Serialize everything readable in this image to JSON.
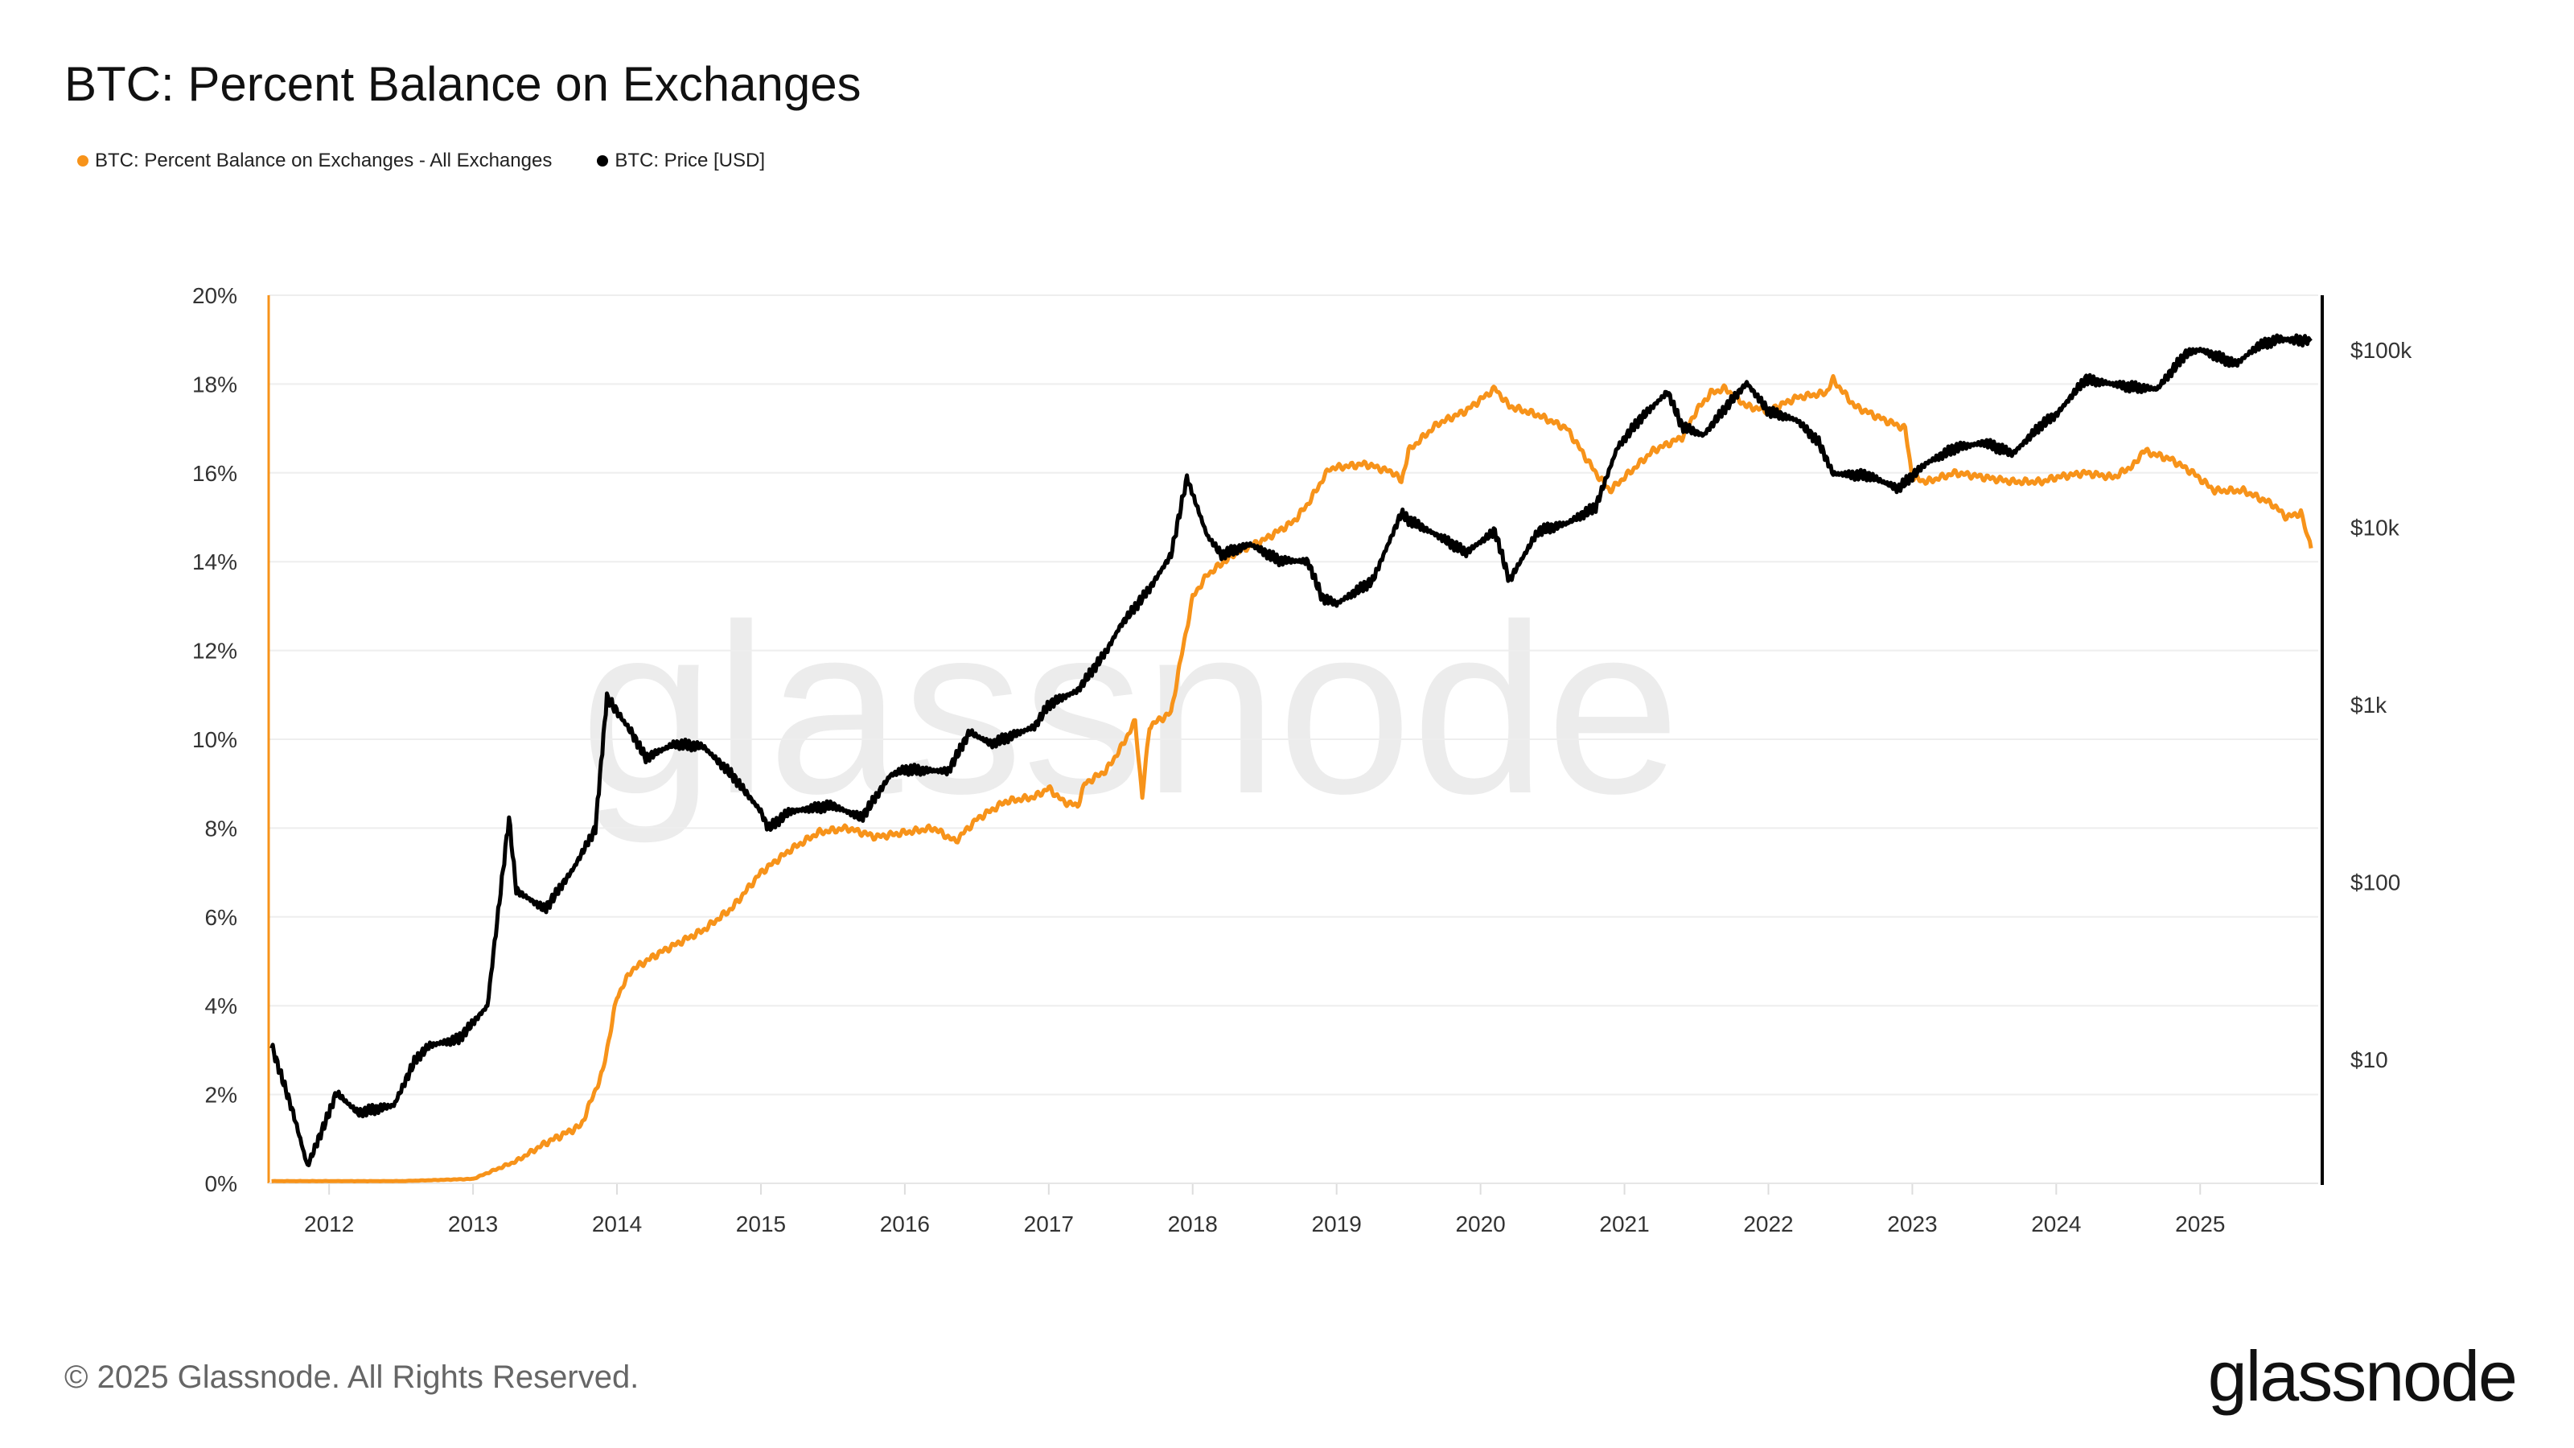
{
  "title": "BTC: Percent Balance on Exchanges",
  "footer": "© 2025 Glassnode. All Rights Reserved.",
  "logo": "glassnode",
  "watermark": "glassnode",
  "colors": {
    "balance": "#f7931a",
    "price": "#000000",
    "grid": "#eeeeee"
  },
  "chart_data": {
    "type": "line",
    "title": "BTC: Percent Balance on Exchanges",
    "legend_placement": "top-left",
    "grid": true,
    "x_ticks": [
      "2012",
      "2013",
      "2014",
      "2015",
      "2016",
      "2017",
      "2018",
      "2019",
      "2020",
      "2021",
      "2022",
      "2023",
      "2024",
      "2025"
    ],
    "xlim": [
      2011.58,
      2025.82
    ],
    "y_left": {
      "ticks": [
        "0%",
        "2%",
        "4%",
        "6%",
        "8%",
        "10%",
        "12%",
        "14%",
        "16%",
        "18%",
        "20%"
      ],
      "range": [
        0,
        20
      ],
      "scale": "linear"
    },
    "y_right": {
      "ticks": [
        "$10",
        "$100",
        "$1k",
        "$10k",
        "$100k"
      ],
      "tick_values": [
        10,
        100,
        1000,
        10000,
        100000
      ],
      "range": [
        2,
        203000
      ],
      "scale": "log"
    },
    "series": [
      {
        "name": "BTC: Percent Balance on Exchanges - All Exchanges",
        "axis": "left",
        "color": "#f7931a",
        "x": [
          2011.6,
          2012.5,
          2013.0,
          2013.3,
          2013.5,
          2013.75,
          2013.9,
          2014.0,
          2014.1,
          2014.3,
          2014.6,
          2014.8,
          2014.9,
          2015.0,
          2015.2,
          2015.4,
          2015.6,
          2015.8,
          2016.0,
          2016.2,
          2016.35,
          2016.5,
          2016.7,
          2016.9,
          2017.0,
          2017.1,
          2017.2,
          2017.25,
          2017.4,
          2017.5,
          2017.6,
          2017.65,
          2017.7,
          2017.85,
          2017.9,
          2018.0,
          2018.1,
          2018.3,
          2018.5,
          2018.7,
          2018.8,
          2018.95,
          2019.2,
          2019.4,
          2019.45,
          2019.5,
          2019.7,
          2019.9,
          2020.1,
          2020.2,
          2020.4,
          2020.6,
          2020.8,
          2020.9,
          2021.0,
          2021.2,
          2021.4,
          2021.5,
          2021.6,
          2021.7,
          2021.85,
          2022.0,
          2022.2,
          2022.4,
          2022.45,
          2022.6,
          2022.8,
          2022.95,
          2023.0,
          2023.1,
          2023.3,
          2023.5,
          2023.7,
          2023.9,
          2024.0,
          2024.2,
          2024.4,
          2024.55,
          2024.6,
          2024.8,
          2024.95,
          2025.1,
          2025.3,
          2025.5,
          2025.6,
          2025.7,
          2025.77
        ],
        "y": [
          0.05,
          0.05,
          0.1,
          0.5,
          0.9,
          1.3,
          2.5,
          4.2,
          4.8,
          5.2,
          5.7,
          6.2,
          6.6,
          7.0,
          7.5,
          7.9,
          8.0,
          7.8,
          7.9,
          8.0,
          7.7,
          8.2,
          8.6,
          8.7,
          8.9,
          8.6,
          8.5,
          9.0,
          9.3,
          9.8,
          10.4,
          8.7,
          10.3,
          10.6,
          11.5,
          13.2,
          13.7,
          14.2,
          14.5,
          14.9,
          15.3,
          16.1,
          16.2,
          16.0,
          15.8,
          16.5,
          17.1,
          17.4,
          17.9,
          17.5,
          17.3,
          17.0,
          16.0,
          15.6,
          15.9,
          16.5,
          16.8,
          17.4,
          17.8,
          17.9,
          17.5,
          17.4,
          17.7,
          17.8,
          18.1,
          17.5,
          17.2,
          17.0,
          15.9,
          15.8,
          16.0,
          15.9,
          15.8,
          15.8,
          15.9,
          16.0,
          15.9,
          16.2,
          16.5,
          16.3,
          16.0,
          15.6,
          15.6,
          15.3,
          15.0,
          15.1,
          14.3
        ]
      },
      {
        "name": "BTC: Price [USD]",
        "axis": "right",
        "color": "#000000",
        "x": [
          2011.6,
          2011.75,
          2011.85,
          2012.0,
          2012.05,
          2012.2,
          2012.45,
          2012.6,
          2012.7,
          2012.9,
          2013.1,
          2013.25,
          2013.3,
          2013.5,
          2013.7,
          2013.85,
          2013.93,
          2014.1,
          2014.2,
          2014.4,
          2014.6,
          2014.8,
          2015.0,
          2015.05,
          2015.2,
          2015.5,
          2015.7,
          2015.9,
          2016.0,
          2016.3,
          2016.45,
          2016.6,
          2016.9,
          2017.0,
          2017.1,
          2017.2,
          2017.4,
          2017.5,
          2017.7,
          2017.85,
          2017.96,
          2018.1,
          2018.2,
          2018.4,
          2018.6,
          2018.8,
          2018.9,
          2019.0,
          2019.25,
          2019.45,
          2019.5,
          2019.7,
          2019.9,
          2020.1,
          2020.2,
          2020.4,
          2020.6,
          2020.8,
          2020.95,
          2021.1,
          2021.3,
          2021.4,
          2021.55,
          2021.7,
          2021.85,
          2022.0,
          2022.2,
          2022.35,
          2022.45,
          2022.7,
          2022.9,
          2023.1,
          2023.3,
          2023.5,
          2023.7,
          2023.9,
          2024.0,
          2024.2,
          2024.5,
          2024.7,
          2024.9,
          2025.0,
          2025.25,
          2025.4,
          2025.55,
          2025.77
        ],
        "y": [
          12,
          5,
          2.5,
          5,
          6.5,
          5,
          5.5,
          10,
          12,
          13,
          20,
          230,
          90,
          70,
          120,
          200,
          1100,
          700,
          500,
          600,
          580,
          400,
          250,
          200,
          250,
          270,
          230,
          400,
          430,
          420,
          700,
          600,
          750,
          1000,
          1100,
          1200,
          2000,
          2800,
          4500,
          7000,
          19000,
          9000,
          7000,
          8000,
          6500,
          6400,
          4000,
          3700,
          5000,
          12000,
          11000,
          9000,
          7200,
          9500,
          5000,
          9500,
          10500,
          13000,
          28000,
          40000,
          58000,
          37000,
          33000,
          47000,
          65000,
          45000,
          40000,
          30000,
          20000,
          19500,
          16500,
          23000,
          28000,
          30000,
          26000,
          38000,
          43000,
          68000,
          62000,
          60000,
          95000,
          100000,
          83000,
          105000,
          115000,
          112000
        ]
      }
    ]
  }
}
